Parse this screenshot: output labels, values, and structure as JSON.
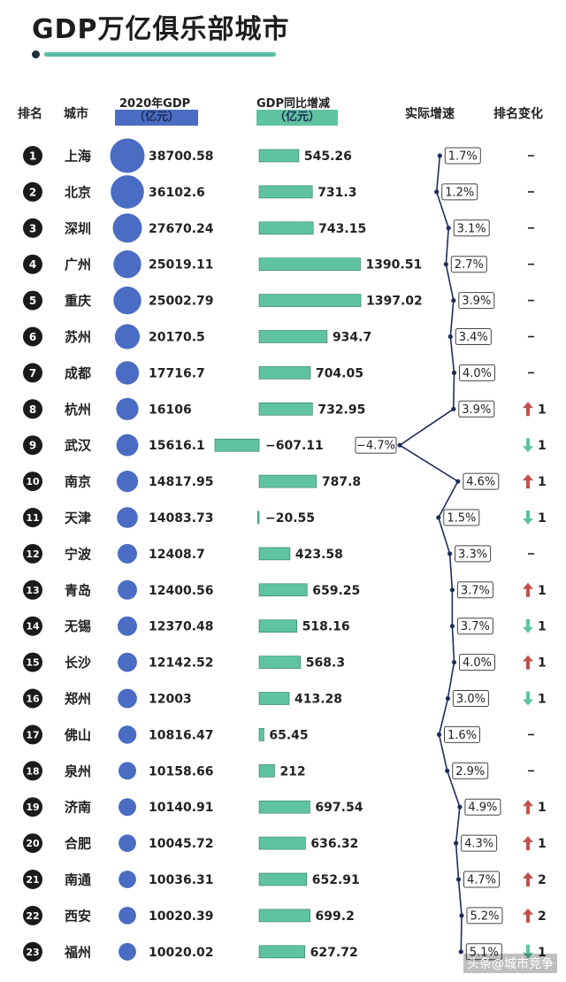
{
  "title": "GDP万亿俱乐部城市",
  "headers": {
    "rank": "排名",
    "city": "城市",
    "gdp": "2020年GDP",
    "gdp_unit": "（亿元）",
    "change": "GDP同比增减",
    "change_unit": "（亿元）",
    "growth": "实际增速",
    "rank_change": "排名变化"
  },
  "colors": {
    "bubble": "#4a6cc3",
    "bar": "#5fc3a2",
    "up": "#c0504d",
    "down": "#5fc3a2",
    "gdp_tag": "#4a6cc3",
    "change_tag": "#5fc3a2",
    "line": "#1f2d5a"
  },
  "watermark": "头条@城市竞争",
  "chart_data": {
    "type": "table",
    "columns": [
      "排名",
      "城市",
      "2020年GDP（亿元）",
      "GDP同比增减（亿元）",
      "实际增速",
      "排名变化"
    ],
    "rows": [
      {
        "rank": "1",
        "city": "上海",
        "gdp": 38700.58,
        "gdp_label": "38700.58",
        "change": 545.26,
        "change_label": "545.26",
        "growth": 1.7,
        "growth_label": "1.7%",
        "rank_change": "—",
        "rank_dir": "none"
      },
      {
        "rank": "2",
        "city": "北京",
        "gdp": 36102.6,
        "gdp_label": "36102.6",
        "change": 731.3,
        "change_label": "731.3",
        "growth": 1.2,
        "growth_label": "1.2%",
        "rank_change": "—",
        "rank_dir": "none"
      },
      {
        "rank": "3",
        "city": "深圳",
        "gdp": 27670.24,
        "gdp_label": "27670.24",
        "change": 743.15,
        "change_label": "743.15",
        "growth": 3.1,
        "growth_label": "3.1%",
        "rank_change": "—",
        "rank_dir": "none"
      },
      {
        "rank": "4",
        "city": "广州",
        "gdp": 25019.11,
        "gdp_label": "25019.11",
        "change": 1390.51,
        "change_label": "1390.51",
        "growth": 2.7,
        "growth_label": "2.7%",
        "rank_change": "—",
        "rank_dir": "none"
      },
      {
        "rank": "5",
        "city": "重庆",
        "gdp": 25002.79,
        "gdp_label": "25002.79",
        "change": 1397.02,
        "change_label": "1397.02",
        "growth": 3.9,
        "growth_label": "3.9%",
        "rank_change": "—",
        "rank_dir": "none"
      },
      {
        "rank": "6",
        "city": "苏州",
        "gdp": 20170.5,
        "gdp_label": "20170.5",
        "change": 934.7,
        "change_label": "934.7",
        "growth": 3.4,
        "growth_label": "3.4%",
        "rank_change": "—",
        "rank_dir": "none"
      },
      {
        "rank": "7",
        "city": "成都",
        "gdp": 17716.7,
        "gdp_label": "17716.7",
        "change": 704.05,
        "change_label": "704.05",
        "growth": 4.0,
        "growth_label": "4.0%",
        "rank_change": "—",
        "rank_dir": "none"
      },
      {
        "rank": "8",
        "city": "杭州",
        "gdp": 16106,
        "gdp_label": "16106",
        "change": 732.95,
        "change_label": "732.95",
        "growth": 3.9,
        "growth_label": "3.9%",
        "rank_change": "1",
        "rank_dir": "up"
      },
      {
        "rank": "9",
        "city": "武汉",
        "gdp": 15616.1,
        "gdp_label": "15616.1",
        "change": -607.11,
        "change_label": "−607.11",
        "growth": -4.7,
        "growth_label": "−4.7%",
        "rank_change": "1",
        "rank_dir": "down"
      },
      {
        "rank": "10",
        "city": "南京",
        "gdp": 14817.95,
        "gdp_label": "14817.95",
        "change": 787.8,
        "change_label": "787.8",
        "growth": 4.6,
        "growth_label": "4.6%",
        "rank_change": "1",
        "rank_dir": "up"
      },
      {
        "rank": "11",
        "city": "天津",
        "gdp": 14083.73,
        "gdp_label": "14083.73",
        "change": -20.55,
        "change_label": "−20.55",
        "growth": 1.5,
        "growth_label": "1.5%",
        "rank_change": "1",
        "rank_dir": "down"
      },
      {
        "rank": "12",
        "city": "宁波",
        "gdp": 12408.7,
        "gdp_label": "12408.7",
        "change": 423.58,
        "change_label": "423.58",
        "growth": 3.3,
        "growth_label": "3.3%",
        "rank_change": "—",
        "rank_dir": "none"
      },
      {
        "rank": "13",
        "city": "青岛",
        "gdp": 12400.56,
        "gdp_label": "12400.56",
        "change": 659.25,
        "change_label": "659.25",
        "growth": 3.7,
        "growth_label": "3.7%",
        "rank_change": "1",
        "rank_dir": "up"
      },
      {
        "rank": "14",
        "city": "无锡",
        "gdp": 12370.48,
        "gdp_label": "12370.48",
        "change": 518.16,
        "change_label": "518.16",
        "growth": 3.7,
        "growth_label": "3.7%",
        "rank_change": "1",
        "rank_dir": "down"
      },
      {
        "rank": "15",
        "city": "长沙",
        "gdp": 12142.52,
        "gdp_label": "12142.52",
        "change": 568.3,
        "change_label": "568.3",
        "growth": 4.0,
        "growth_label": "4.0%",
        "rank_change": "1",
        "rank_dir": "up"
      },
      {
        "rank": "16",
        "city": "郑州",
        "gdp": 12003,
        "gdp_label": "12003",
        "change": 413.28,
        "change_label": "413.28",
        "growth": 3.0,
        "growth_label": "3.0%",
        "rank_change": "1",
        "rank_dir": "down"
      },
      {
        "rank": "17",
        "city": "佛山",
        "gdp": 10816.47,
        "gdp_label": "10816.47",
        "change": 65.45,
        "change_label": "65.45",
        "growth": 1.6,
        "growth_label": "1.6%",
        "rank_change": "—",
        "rank_dir": "none"
      },
      {
        "rank": "18",
        "city": "泉州",
        "gdp": 10158.66,
        "gdp_label": "10158.66",
        "change": 212,
        "change_label": "212",
        "growth": 2.9,
        "growth_label": "2.9%",
        "rank_change": "—",
        "rank_dir": "none"
      },
      {
        "rank": "19",
        "city": "济南",
        "gdp": 10140.91,
        "gdp_label": "10140.91",
        "change": 697.54,
        "change_label": "697.54",
        "growth": 4.9,
        "growth_label": "4.9%",
        "rank_change": "1",
        "rank_dir": "up"
      },
      {
        "rank": "20",
        "city": "合肥",
        "gdp": 10045.72,
        "gdp_label": "10045.72",
        "change": 636.32,
        "change_label": "636.32",
        "growth": 4.3,
        "growth_label": "4.3%",
        "rank_change": "1",
        "rank_dir": "up"
      },
      {
        "rank": "21",
        "city": "南通",
        "gdp": 10036.31,
        "gdp_label": "10036.31",
        "change": 652.91,
        "change_label": "652.91",
        "growth": 4.7,
        "growth_label": "4.7%",
        "rank_change": "2",
        "rank_dir": "up"
      },
      {
        "rank": "22",
        "city": "西安",
        "gdp": 10020.39,
        "gdp_label": "10020.39",
        "change": 699.2,
        "change_label": "699.2",
        "growth": 5.2,
        "growth_label": "5.2%",
        "rank_change": "2",
        "rank_dir": "up"
      },
      {
        "rank": "23",
        "city": "福州",
        "gdp": 10020.02,
        "gdp_label": "10020.02",
        "change": 627.72,
        "change_label": "627.72",
        "growth": 5.1,
        "growth_label": "5.1%",
        "rank_change": "1",
        "rank_dir": "down"
      }
    ]
  }
}
